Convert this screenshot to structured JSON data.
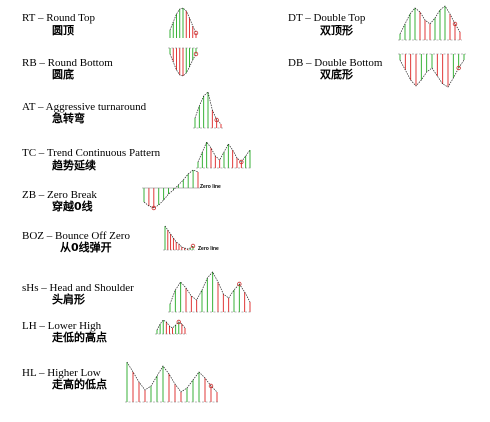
{
  "colors": {
    "bar_up": "#22aa22",
    "bar_down": "#dd2222",
    "line": "#222222",
    "guide": "#777777",
    "marker": "#cc3333"
  },
  "patterns": [
    {
      "id": "rt",
      "label": "RT – Round Top",
      "zh": "圆顶"
    },
    {
      "id": "rb",
      "label": "RB – Round Bottom",
      "zh": "圆底"
    },
    {
      "id": "at",
      "label": "AT – Aggressive turnaround",
      "zh": "急转弯"
    },
    {
      "id": "tc",
      "label": "TC – Trend Continuous Pattern",
      "zh": "趋势延续"
    },
    {
      "id": "zb",
      "label": "ZB – Zero Break",
      "zh": "穿越0线",
      "note": "Zero line"
    },
    {
      "id": "boz",
      "label": "BOZ – Bounce Off Zero",
      "zh": "从0线弹开",
      "note": "Zero line"
    },
    {
      "id": "shs",
      "label": "sHs – Head and Shoulder",
      "zh": "头肩形"
    },
    {
      "id": "lh",
      "label": "LH – Lower High",
      "zh": "走低的高点"
    },
    {
      "id": "hl",
      "label": "HL – Higher Low",
      "zh": "走高的低点"
    },
    {
      "id": "dt",
      "label": "DT – Double Top",
      "zh": "双顶形"
    },
    {
      "id": "db",
      "label": "DB – Double Bottom",
      "zh": "双底形"
    }
  ]
}
